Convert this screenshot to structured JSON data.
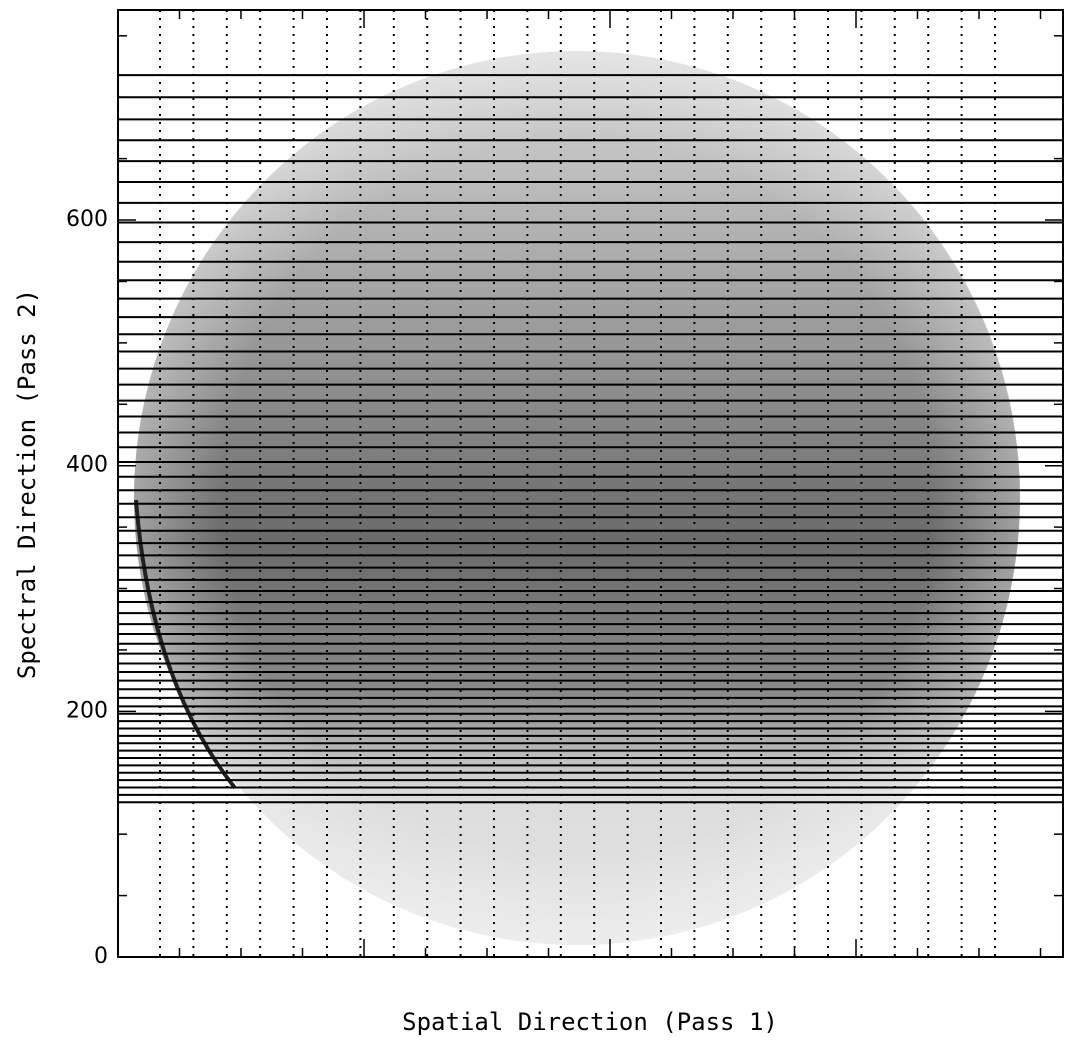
{
  "chart_data": {
    "type": "image",
    "xlabel": "Spatial Direction (Pass 1)",
    "ylabel": "Spectral Direction (Pass 2)",
    "ylim": [
      0,
      771
    ],
    "yticks": [
      0,
      200,
      400,
      600
    ],
    "yminor_ticks": [
      50,
      100,
      150,
      250,
      300,
      350,
      450,
      500,
      550,
      650,
      700,
      750
    ],
    "hlines": [
      718,
      700,
      682,
      665,
      648,
      631,
      614,
      598,
      582,
      566,
      551,
      536,
      521,
      507,
      493,
      479,
      466,
      453,
      440,
      427,
      415,
      403,
      391,
      380,
      369,
      358,
      347,
      337,
      327,
      317,
      307,
      298,
      289,
      280,
      271,
      263,
      255,
      247,
      239,
      232,
      225,
      218,
      211,
      204,
      198,
      192,
      186,
      180,
      174,
      168,
      162,
      156,
      150,
      144,
      138,
      132,
      126
    ]
  }
}
